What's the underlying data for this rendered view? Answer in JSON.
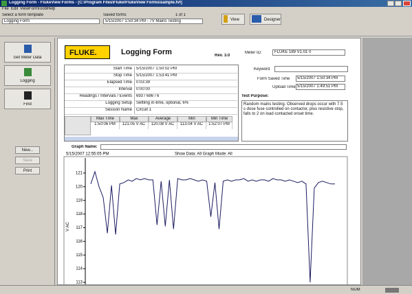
{
  "title_bar": "Logging Form - FlukeView Forms - [C:\\Program Files\\Fluke\\FlukeView Forms\\sample.fvf]",
  "menu": [
    "File",
    "Edit",
    "View",
    "Form",
    "Tools",
    "Help"
  ],
  "toolbar": {
    "template_label": "Select a form template",
    "template": "Logging Form",
    "saved_label": "Saved forms",
    "count": "1 of 1",
    "saved": "5/15/2007 1:50:34 PM - 7V Mains Testing",
    "view": "View",
    "designer": "Designer"
  },
  "sidebar": {
    "nav": [
      "Get Meter Data",
      "Logging",
      "Find"
    ],
    "actions": [
      "New...",
      "Save",
      "Print"
    ]
  },
  "form": {
    "logo": "FLUKE.",
    "title": "Logging Form",
    "rev": "Rev. 3.0",
    "meter_id_label": "Meter ID:",
    "meter_id": "FLUKE 189 V1.01 0",
    "info": [
      [
        "Start Time",
        "5/15/2007 1:50:02 PM"
      ],
      [
        "Stop Time",
        "5/15/2007 1:53:41 PM"
      ],
      [
        "Elapsed Time",
        "0:03:39"
      ],
      [
        "Interval",
        "0:00:00"
      ],
      [
        "Readings / Intervals / Events",
        "693 / 686 / 6"
      ],
      [
        "Logging Setup",
        "Settling in-time, optional, 6%"
      ],
      [
        "Session Name",
        "Circuit 1"
      ]
    ],
    "stats_header": [
      "Max Time",
      "Max",
      "Average",
      "Min",
      "Min Time"
    ],
    "stats_row": [
      "1:50:06 PM",
      "121.05 V AC",
      "120.08 V AC",
      "113.04 V AC",
      "1:52:07 PM"
    ],
    "keyword_label": "Keyword",
    "form_saved_label": "Form Saved Time",
    "form_saved": "5/15/2007 1:50:34 PM",
    "upload_label": "Upload Time",
    "upload": "5/15/2007 1:49:51 PM",
    "purpose_label": "Test Purpose:",
    "purpose": "Random mains testing. Observed drops occur with 7.5 s dose fuse controlled on contactor, plus resistive stop, falls to 2 on load contacted onset time.",
    "graph_name_label": "Graph Name:"
  },
  "chart_data": {
    "type": "line",
    "annotation": "5/15/2007 12:55:05 PM",
    "subtitle": "Show Data: All   Graph Mode: All",
    "y_label": "V AC",
    "ylim": [
      112.8,
      121.8
    ],
    "yticks": [
      113,
      114,
      115,
      116,
      117,
      118,
      119,
      120,
      121
    ],
    "color": "#1a1a60",
    "values": [
      120.2,
      121.1,
      120.0,
      119.2,
      116.6,
      120.1,
      116.5,
      120.2,
      120.3,
      120.5,
      120.4,
      120.6,
      120.5,
      120.6,
      120.5,
      120.5,
      117.2,
      120.4,
      117.1,
      120.5,
      116.9,
      120.6,
      120.5,
      120.5,
      120.6,
      120.5,
      120.4,
      120.5,
      120.4,
      117.8,
      120.3,
      116.9,
      120.4,
      120.5,
      120.4,
      120.5,
      120.5,
      120.6,
      120.4,
      120.5,
      120.4,
      120.5,
      120.5,
      120.4,
      120.6,
      120.5,
      120.5,
      120.4,
      120.5,
      120.4,
      120.3,
      120.4,
      120.2,
      113.0,
      119.9,
      120.3,
      120.4,
      120.3,
      120.2,
      120.2
    ]
  },
  "status": "NUM"
}
